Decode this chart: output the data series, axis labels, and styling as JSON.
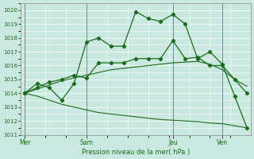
{
  "background_color": "#c8e8e0",
  "grid_color": "#ffffff",
  "line_color": "#1a6b1a",
  "ylim": [
    1011,
    1020.5
  ],
  "yticks": [
    1011,
    1012,
    1013,
    1014,
    1015,
    1016,
    1017,
    1018,
    1019,
    1020
  ],
  "xlabel": "Pression niveau de la mer( hPa )",
  "xtick_labels": [
    "Mer",
    "Sam",
    "Jeu",
    "Ven"
  ],
  "num_points": 19,
  "xtick_positions": [
    0,
    5,
    12,
    16
  ],
  "vline_positions": [
    0,
    5,
    12,
    16
  ],
  "line1_x": [
    0,
    1,
    2,
    3,
    4,
    5,
    6,
    7,
    8,
    9,
    10,
    11,
    12,
    13,
    14,
    15,
    16,
    17,
    18
  ],
  "line1_y": [
    1014.0,
    1014.7,
    1014.4,
    1013.5,
    1014.7,
    1017.7,
    1018.0,
    1017.4,
    1017.4,
    1019.9,
    1019.4,
    1019.2,
    1019.7,
    1019.0,
    1016.5,
    1017.0,
    1016.1,
    1013.8,
    1011.5
  ],
  "line2_x": [
    0,
    1,
    2,
    3,
    4,
    5,
    6,
    7,
    8,
    9,
    10,
    11,
    12,
    13,
    14,
    15,
    16,
    17,
    18
  ],
  "line2_y": [
    1014.0,
    1014.4,
    1014.8,
    1015.0,
    1015.3,
    1015.1,
    1016.2,
    1016.2,
    1016.2,
    1016.5,
    1016.5,
    1016.5,
    1017.8,
    1016.5,
    1016.6,
    1016.0,
    1016.0,
    1015.0,
    1014.0
  ],
  "line3_y": [
    1014.0,
    1014.3,
    1014.6,
    1014.9,
    1015.1,
    1015.3,
    1015.5,
    1015.7,
    1015.8,
    1015.9,
    1016.0,
    1016.1,
    1016.2,
    1016.25,
    1016.3,
    1016.1,
    1015.7,
    1015.0,
    1014.5
  ],
  "line4_y": [
    1014.0,
    1013.8,
    1013.5,
    1013.2,
    1013.0,
    1012.8,
    1012.6,
    1012.5,
    1012.4,
    1012.3,
    1012.2,
    1012.1,
    1012.05,
    1012.0,
    1011.95,
    1011.85,
    1011.8,
    1011.65,
    1011.5
  ]
}
